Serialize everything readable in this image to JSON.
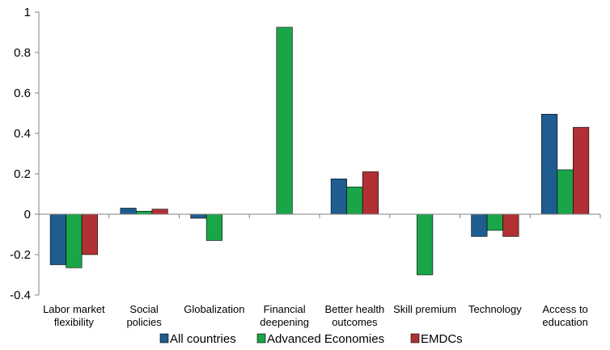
{
  "chart_data": {
    "type": "bar",
    "title": "",
    "xlabel": "",
    "ylabel": "",
    "ylim": [
      -0.4,
      1
    ],
    "yticks": [
      "1",
      "0.8",
      "0.6",
      "0.4",
      "0.2",
      "0",
      "-0.2",
      "-0.4"
    ],
    "categories": [
      [
        "Labor market",
        "flexibility"
      ],
      [
        "Social",
        "policies"
      ],
      [
        "Globalization"
      ],
      [
        "Financial",
        "deepening"
      ],
      [
        "Better health",
        "outcomes"
      ],
      [
        "Skill premium"
      ],
      [
        "Technology"
      ],
      [
        "Access to",
        "education"
      ]
    ],
    "series": [
      {
        "name": "All countries",
        "color": "#1f5c8f",
        "values": [
          -0.25,
          0.03,
          -0.02,
          null,
          0.175,
          null,
          -0.11,
          0.495
        ]
      },
      {
        "name": "Advanced Economies",
        "color": "#1aa648",
        "values": [
          -0.265,
          0.015,
          -0.13,
          0.925,
          0.135,
          -0.3,
          -0.08,
          0.22
        ]
      },
      {
        "name": "EMDCs",
        "color": "#b03034",
        "values": [
          -0.2,
          0.025,
          null,
          null,
          0.21,
          null,
          -0.11,
          0.43
        ]
      }
    ],
    "grid": false,
    "legend_position": "bottom"
  }
}
